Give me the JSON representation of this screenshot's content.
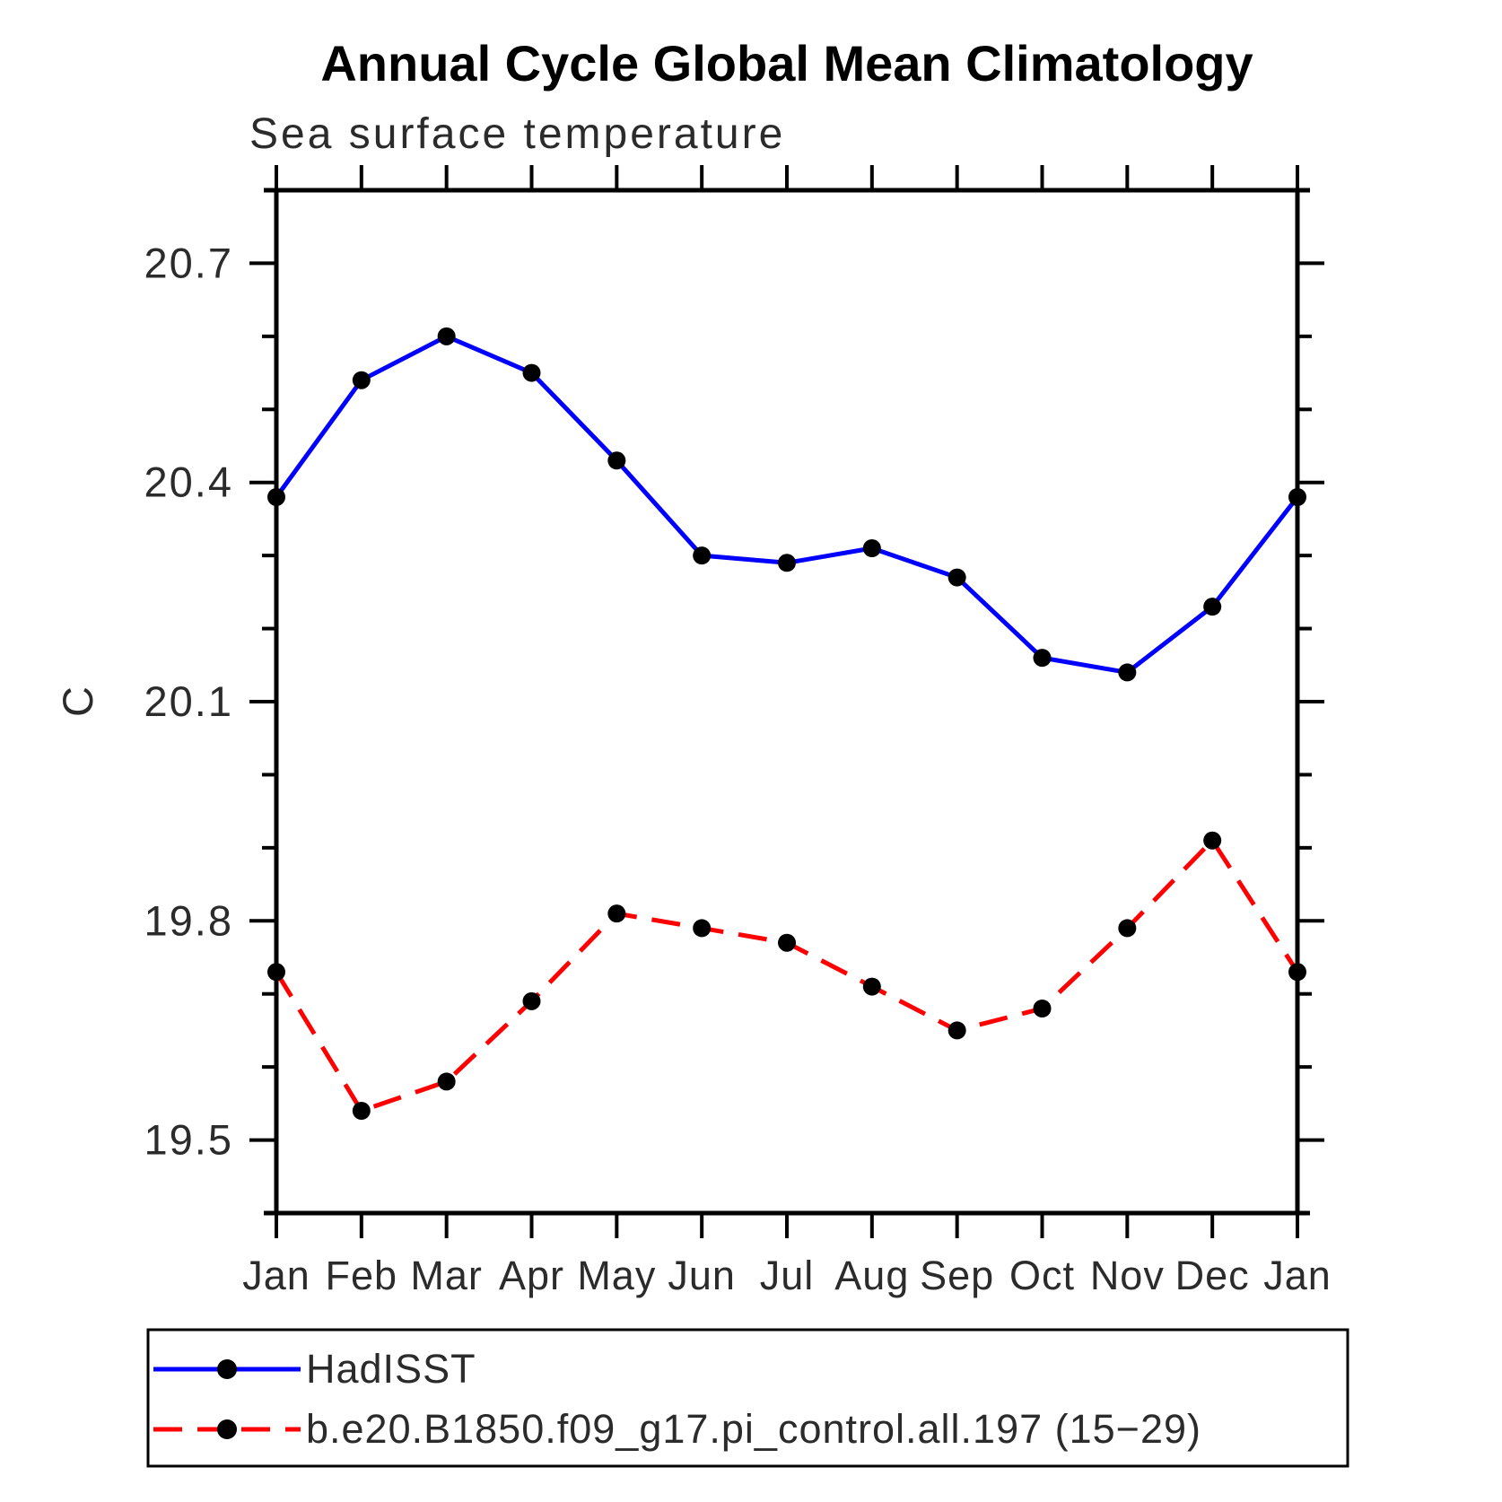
{
  "title": "Annual Cycle Global Mean Climatology",
  "subtitle": "Sea surface temperature",
  "y_axis_title": "C",
  "chart_data": {
    "type": "line",
    "title": "Annual Cycle Global Mean Climatology",
    "subtitle": "Sea surface temperature",
    "xlabel": "",
    "ylabel": "C",
    "categories": [
      "Jan",
      "Feb",
      "Mar",
      "Apr",
      "May",
      "Jun",
      "Jul",
      "Aug",
      "Sep",
      "Oct",
      "Nov",
      "Dec",
      "Jan"
    ],
    "series": [
      {
        "name": "HadISST",
        "color": "#0000ff",
        "line_style": "solid",
        "marker": "filled-circle",
        "marker_color": "#000000",
        "values": [
          20.38,
          20.54,
          20.6,
          20.55,
          20.43,
          20.3,
          20.29,
          20.31,
          20.27,
          20.16,
          20.14,
          20.23,
          20.38
        ]
      },
      {
        "name": "b.e20.B1850.f09_g17.pi_control.all.197 (15−29)",
        "color": "#ff0000",
        "line_style": "dashed",
        "marker": "filled-circle",
        "marker_color": "#000000",
        "values": [
          19.73,
          19.54,
          19.58,
          19.69,
          19.81,
          19.79,
          19.77,
          19.71,
          19.65,
          19.68,
          19.79,
          19.91,
          19.73
        ]
      }
    ],
    "ylim": [
      19.4,
      20.8
    ],
    "ytick_major": [
      19.5,
      19.8,
      20.1,
      20.4,
      20.7
    ],
    "ytick_minor_step": 0.1,
    "grid": false,
    "tick_direction": "out",
    "legend_position": "bottom-left-box"
  },
  "legend": {
    "entries": [
      {
        "label": "HadISST"
      },
      {
        "label": "b.e20.B1850.f09_g17.pi_control.all.197 (15−29)"
      }
    ]
  }
}
